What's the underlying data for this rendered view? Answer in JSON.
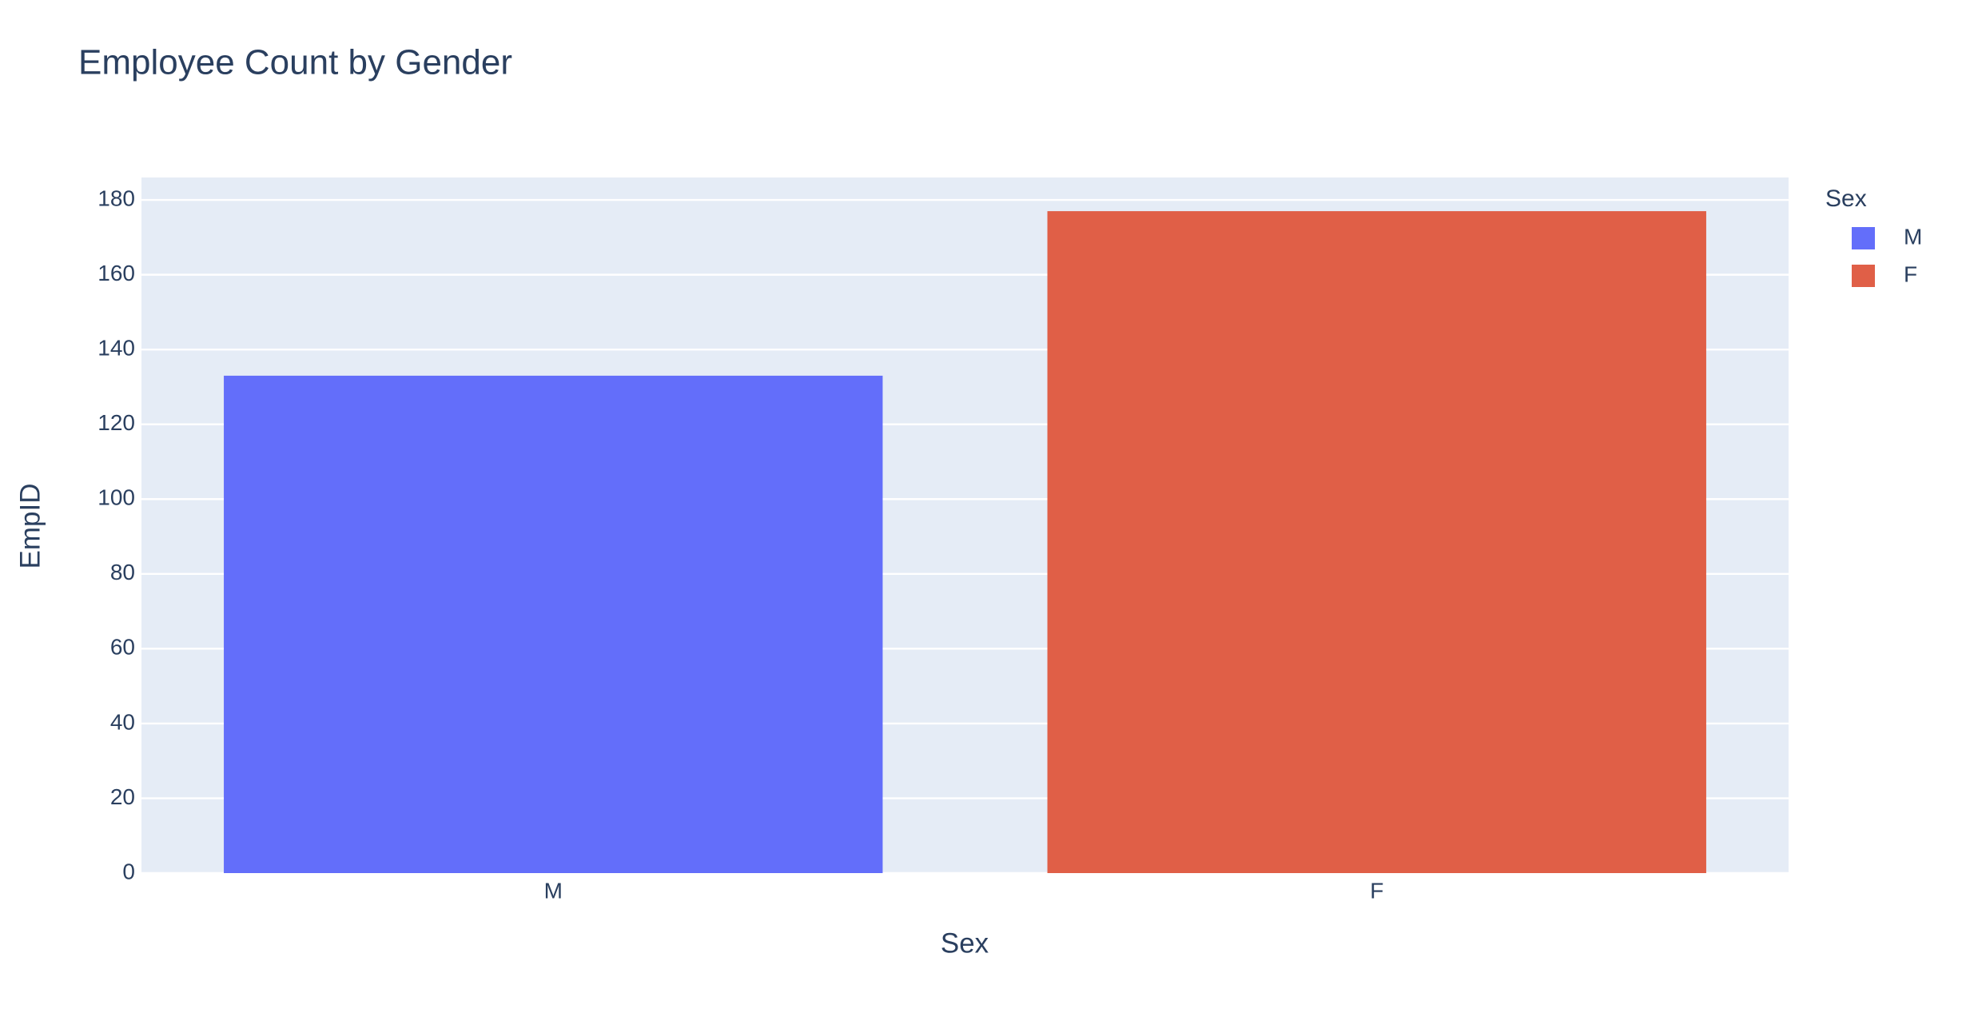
{
  "chart_data": {
    "type": "bar",
    "title": "Employee Count by Gender",
    "x_label": "Sex",
    "y_label": "EmpID",
    "legend_title": "Sex",
    "categories": [
      "M",
      "F"
    ],
    "series": [
      {
        "name": "M",
        "color": "#636efa",
        "values": [
          133,
          null
        ]
      },
      {
        "name": "F",
        "color": "#e05f47",
        "values": [
          null,
          177
        ]
      }
    ],
    "ylim": [
      0,
      186
    ],
    "yticks": [
      0,
      20,
      40,
      60,
      80,
      100,
      120,
      140,
      160,
      180
    ],
    "grid": true,
    "legend": "right"
  }
}
